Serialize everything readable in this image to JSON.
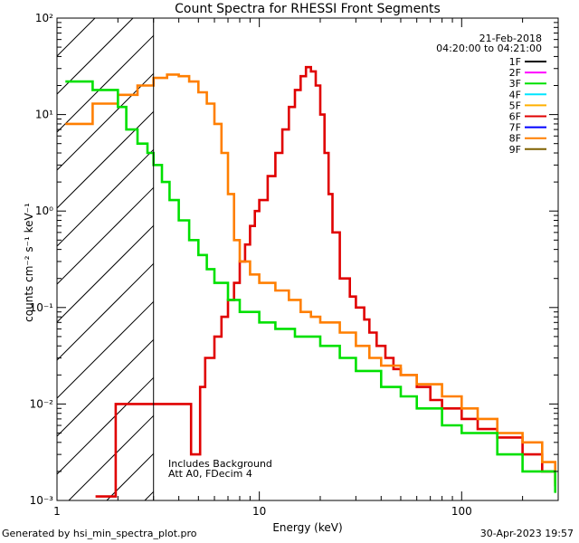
{
  "chart_data": {
    "type": "line",
    "title": "Count Spectra for RHESSI Front Segments",
    "xlabel": "Energy (keV)",
    "ylabel": "counts cm⁻² s⁻¹ keV⁻¹",
    "xscale": "log",
    "yscale": "log",
    "xlim": [
      1,
      300
    ],
    "ylim": [
      0.001,
      100
    ],
    "x_ticks": [
      {
        "value": 1,
        "label": "1"
      },
      {
        "value": 10,
        "label": "10"
      },
      {
        "value": 100,
        "label": "100"
      }
    ],
    "y_ticks": [
      {
        "value": 0.001,
        "label": "10⁻³"
      },
      {
        "value": 0.01,
        "label": "10⁻²"
      },
      {
        "value": 0.1,
        "label": "10⁻¹"
      },
      {
        "value": 1,
        "label": "10⁰"
      },
      {
        "value": 10,
        "label": "10¹"
      },
      {
        "value": 100,
        "label": "10²"
      }
    ],
    "date": "21-Feb-2018",
    "time_range": "04:20:00 to 04:21:00",
    "legend": [
      {
        "name": "1F",
        "color": "#000000"
      },
      {
        "name": "2F",
        "color": "#ff00ff"
      },
      {
        "name": "3F",
        "color": "#00e000"
      },
      {
        "name": "4F",
        "color": "#00e5ff"
      },
      {
        "name": "5F",
        "color": "#ffb000"
      },
      {
        "name": "6F",
        "color": "#e00000"
      },
      {
        "name": "7F",
        "color": "#0000ff"
      },
      {
        "name": "8F",
        "color": "#ff7f00"
      },
      {
        "name": "9F",
        "color": "#7f6000"
      }
    ],
    "shaded_region_keV": [
      1,
      3
    ],
    "annotations": [
      "Includes Background",
      "Att A0, FDecim 4"
    ],
    "series": [
      {
        "name": "6F",
        "color": "#e00000",
        "points": [
          [
            1.55,
            0.0011
          ],
          [
            1.9,
            0.0011
          ],
          [
            1.95,
            0.01
          ],
          [
            2.2,
            0.01
          ],
          [
            4.4,
            0.01
          ],
          [
            4.6,
            0.003
          ],
          [
            5.0,
            0.003
          ],
          [
            5.1,
            0.015
          ],
          [
            5.4,
            0.03
          ],
          [
            6.0,
            0.05
          ],
          [
            6.5,
            0.08
          ],
          [
            7.0,
            0.12
          ],
          [
            7.5,
            0.18
          ],
          [
            8.0,
            0.3
          ],
          [
            8.5,
            0.45
          ],
          [
            9.0,
            0.7
          ],
          [
            9.5,
            1.0
          ],
          [
            10,
            1.3
          ],
          [
            11,
            2.3
          ],
          [
            12,
            4.0
          ],
          [
            13,
            7
          ],
          [
            14,
            12
          ],
          [
            15,
            18
          ],
          [
            16,
            25
          ],
          [
            17,
            31
          ],
          [
            18,
            28
          ],
          [
            19,
            20
          ],
          [
            20,
            10
          ],
          [
            21,
            4
          ],
          [
            22,
            1.5
          ],
          [
            23,
            0.6
          ],
          [
            25,
            0.2
          ],
          [
            28,
            0.13
          ],
          [
            30,
            0.1
          ],
          [
            33,
            0.075
          ],
          [
            35,
            0.055
          ],
          [
            38,
            0.04
          ],
          [
            42,
            0.03
          ],
          [
            46,
            0.023
          ],
          [
            50,
            0.02
          ],
          [
            60,
            0.015
          ],
          [
            70,
            0.011
          ],
          [
            80,
            0.009
          ],
          [
            100,
            0.007
          ],
          [
            120,
            0.0055
          ],
          [
            150,
            0.0045
          ],
          [
            200,
            0.003
          ],
          [
            250,
            0.002
          ],
          [
            290,
            0.0014
          ]
        ]
      },
      {
        "name": "8F",
        "color": "#ff7f00",
        "points": [
          [
            1.1,
            8
          ],
          [
            1.4,
            8
          ],
          [
            1.5,
            13
          ],
          [
            1.8,
            13
          ],
          [
            2.0,
            16
          ],
          [
            2.5,
            20
          ],
          [
            3.0,
            24
          ],
          [
            3.5,
            26
          ],
          [
            4.0,
            25
          ],
          [
            4.5,
            22
          ],
          [
            5.0,
            17
          ],
          [
            5.5,
            13
          ],
          [
            6.0,
            8
          ],
          [
            6.5,
            4
          ],
          [
            7.0,
            1.5
          ],
          [
            7.5,
            0.5
          ],
          [
            8.0,
            0.3
          ],
          [
            9.0,
            0.22
          ],
          [
            10,
            0.18
          ],
          [
            12,
            0.15
          ],
          [
            14,
            0.12
          ],
          [
            16,
            0.09
          ],
          [
            18,
            0.08
          ],
          [
            20,
            0.07
          ],
          [
            25,
            0.055
          ],
          [
            30,
            0.04
          ],
          [
            35,
            0.03
          ],
          [
            40,
            0.025
          ],
          [
            50,
            0.02
          ],
          [
            60,
            0.016
          ],
          [
            80,
            0.012
          ],
          [
            100,
            0.009
          ],
          [
            120,
            0.007
          ],
          [
            150,
            0.005
          ],
          [
            200,
            0.004
          ],
          [
            250,
            0.0025
          ],
          [
            290,
            0.0015
          ]
        ]
      },
      {
        "name": "3F",
        "color": "#00e000",
        "points": [
          [
            1.1,
            22
          ],
          [
            1.4,
            22
          ],
          [
            1.5,
            18
          ],
          [
            1.8,
            18
          ],
          [
            2.0,
            12
          ],
          [
            2.2,
            7
          ],
          [
            2.5,
            5
          ],
          [
            2.8,
            4
          ],
          [
            3.0,
            3
          ],
          [
            3.3,
            2
          ],
          [
            3.6,
            1.3
          ],
          [
            4.0,
            0.8
          ],
          [
            4.5,
            0.5
          ],
          [
            5.0,
            0.35
          ],
          [
            5.5,
            0.25
          ],
          [
            6.0,
            0.18
          ],
          [
            7.0,
            0.12
          ],
          [
            8.0,
            0.09
          ],
          [
            10,
            0.07
          ],
          [
            12,
            0.06
          ],
          [
            15,
            0.05
          ],
          [
            20,
            0.04
          ],
          [
            25,
            0.03
          ],
          [
            30,
            0.022
          ],
          [
            40,
            0.015
          ],
          [
            50,
            0.012
          ],
          [
            60,
            0.009
          ],
          [
            80,
            0.006
          ],
          [
            100,
            0.005
          ],
          [
            150,
            0.003
          ],
          [
            200,
            0.002
          ],
          [
            290,
            0.0012
          ]
        ]
      }
    ]
  },
  "footer": {
    "generated": "Generated by hsi_min_spectra_plot.pro",
    "date": "30-Apr-2023 19:57"
  }
}
